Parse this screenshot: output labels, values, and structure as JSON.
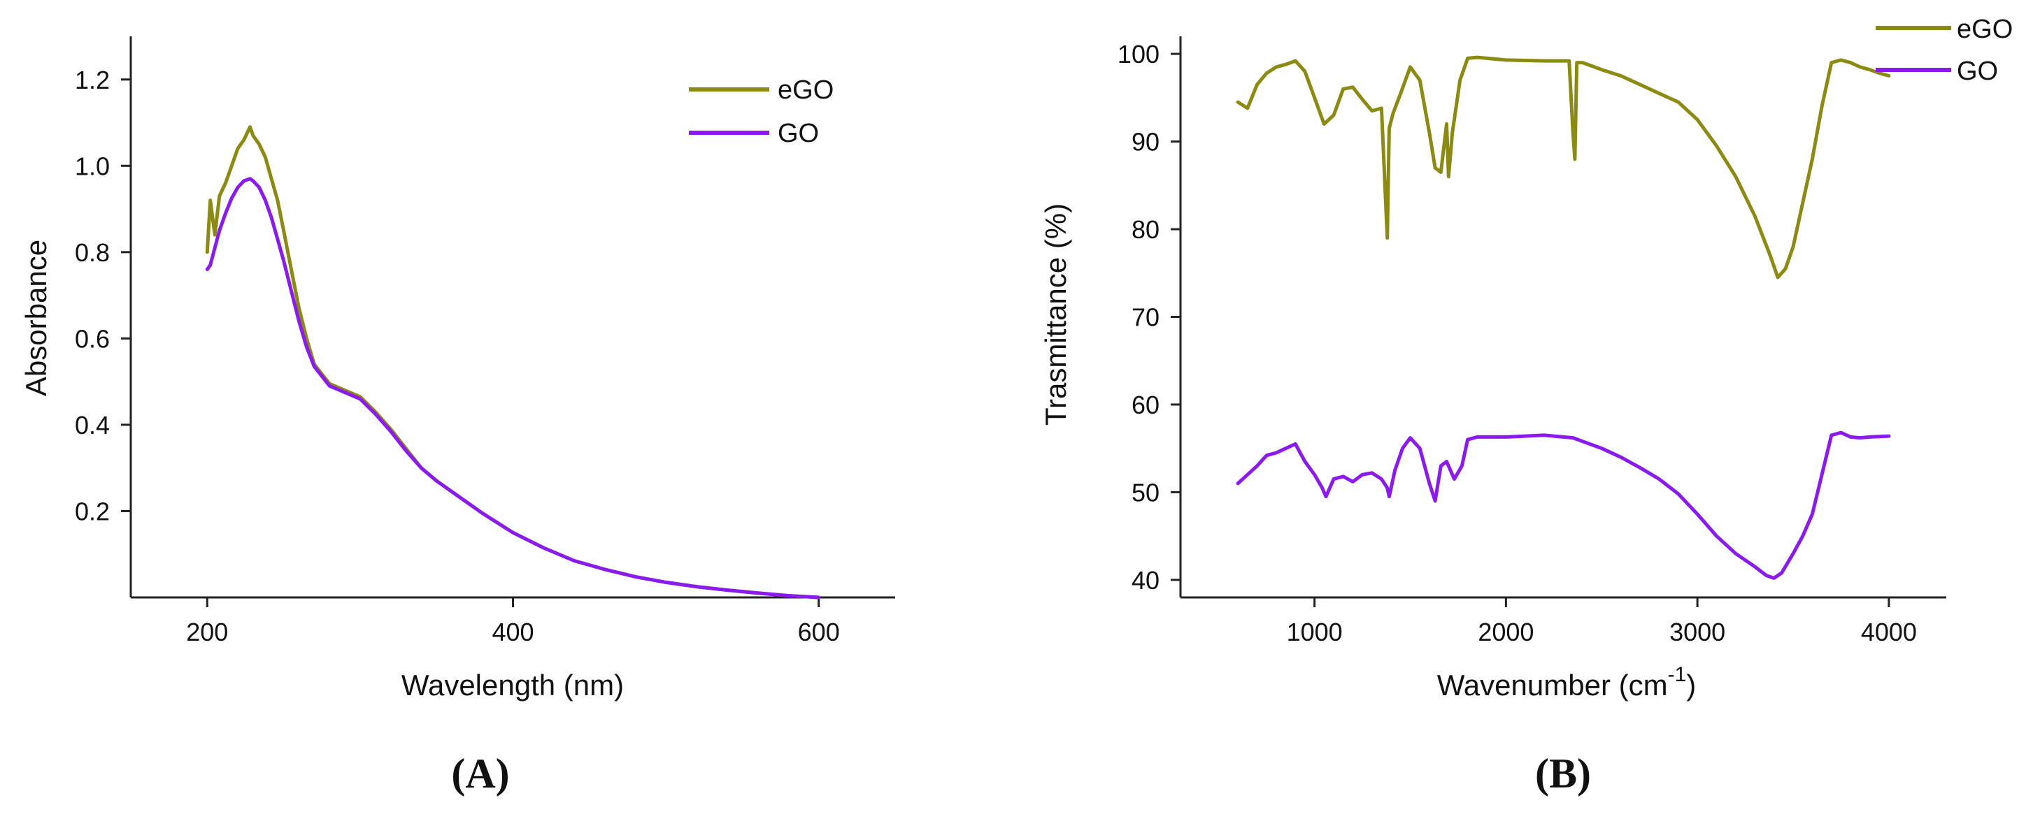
{
  "chart_data": [
    {
      "type": "line",
      "panel_label": "(A)",
      "xlabel": "Wavelength (nm)",
      "ylabel": "Absorbance",
      "xlim": [
        150,
        650
      ],
      "ylim": [
        0,
        1.3
      ],
      "xticks": [
        200,
        400,
        600
      ],
      "yticks": [
        0.2,
        0.4,
        0.6,
        0.8,
        1.0,
        1.2
      ],
      "legend": "top-right",
      "series": [
        {
          "name": "eGO",
          "color": "#8b8b12",
          "x": [
            200,
            202,
            205,
            208,
            212,
            216,
            220,
            224,
            228,
            230,
            234,
            238,
            242,
            246,
            250,
            255,
            260,
            265,
            270,
            280,
            290,
            300,
            310,
            320,
            330,
            340,
            350,
            360,
            370,
            380,
            400,
            420,
            440,
            460,
            480,
            500,
            520,
            540,
            560,
            580,
            600
          ],
          "y": [
            0.8,
            0.92,
            0.84,
            0.93,
            0.96,
            1.0,
            1.04,
            1.06,
            1.09,
            1.07,
            1.05,
            1.02,
            0.97,
            0.92,
            0.85,
            0.76,
            0.67,
            0.6,
            0.54,
            0.495,
            0.48,
            0.465,
            0.43,
            0.39,
            0.345,
            0.3,
            0.27,
            0.245,
            0.22,
            0.195,
            0.15,
            0.115,
            0.085,
            0.065,
            0.048,
            0.035,
            0.025,
            0.017,
            0.01,
            0.004,
            0.0
          ]
        },
        {
          "name": "GO",
          "color": "#8a1aee",
          "x": [
            200,
            202,
            205,
            208,
            212,
            216,
            220,
            224,
            228,
            230,
            234,
            238,
            242,
            246,
            250,
            255,
            260,
            265,
            270,
            280,
            290,
            300,
            310,
            320,
            330,
            340,
            350,
            360,
            370,
            380,
            400,
            420,
            440,
            460,
            480,
            500,
            520,
            540,
            560,
            580,
            600
          ],
          "y": [
            0.76,
            0.77,
            0.81,
            0.85,
            0.89,
            0.925,
            0.95,
            0.965,
            0.97,
            0.965,
            0.95,
            0.92,
            0.88,
            0.83,
            0.78,
            0.71,
            0.64,
            0.58,
            0.535,
            0.49,
            0.475,
            0.46,
            0.425,
            0.385,
            0.34,
            0.3,
            0.27,
            0.245,
            0.22,
            0.195,
            0.15,
            0.115,
            0.085,
            0.065,
            0.048,
            0.035,
            0.025,
            0.017,
            0.01,
            0.004,
            0.0
          ]
        }
      ]
    },
    {
      "type": "line",
      "panel_label": "(B)",
      "xlabel": "Wavenumber (cm",
      "xlabel_sup": "-1",
      "xlabel_close": ")",
      "ylabel": "Trasmittance (%)",
      "xlim": [
        300,
        4300
      ],
      "ylim": [
        38,
        102
      ],
      "xticks": [
        1000,
        2000,
        3000,
        4000
      ],
      "yticks": [
        40,
        50,
        60,
        70,
        80,
        90,
        100
      ],
      "legend": "top-right",
      "series": [
        {
          "name": "eGO",
          "color": "#8b8b12",
          "x": [
            600,
            650,
            700,
            750,
            800,
            850,
            900,
            950,
            1000,
            1050,
            1100,
            1150,
            1200,
            1250,
            1300,
            1350,
            1380,
            1390,
            1410,
            1450,
            1500,
            1550,
            1600,
            1630,
            1660,
            1690,
            1700,
            1720,
            1760,
            1800,
            1850,
            2000,
            2200,
            2330,
            2350,
            2360,
            2370,
            2400,
            2500,
            2600,
            2700,
            2800,
            2900,
            3000,
            3100,
            3200,
            3300,
            3380,
            3420,
            3460,
            3500,
            3550,
            3600,
            3650,
            3700,
            3750,
            3800,
            3850,
            3900,
            3950,
            4000
          ],
          "y": [
            94.5,
            93.8,
            96.5,
            97.8,
            98.5,
            98.8,
            99.2,
            98.0,
            95.0,
            92.0,
            93.0,
            96.0,
            96.2,
            94.8,
            93.5,
            93.8,
            79.0,
            91.5,
            93.2,
            95.5,
            98.5,
            97.0,
            91.0,
            87.0,
            86.5,
            92.0,
            86.0,
            91.0,
            97.0,
            99.5,
            99.6,
            99.3,
            99.2,
            99.2,
            91.0,
            88.0,
            99.0,
            99.0,
            98.2,
            97.5,
            96.5,
            95.5,
            94.5,
            92.5,
            89.5,
            86.0,
            81.5,
            77.0,
            74.5,
            75.5,
            78.0,
            83.0,
            88.0,
            94.0,
            99.0,
            99.3,
            99.0,
            98.5,
            98.2,
            97.8,
            97.5
          ]
        },
        {
          "name": "GO",
          "color": "#8a1aee",
          "x": [
            600,
            650,
            700,
            750,
            800,
            850,
            900,
            950,
            1000,
            1040,
            1060,
            1100,
            1150,
            1200,
            1250,
            1300,
            1350,
            1380,
            1390,
            1420,
            1460,
            1500,
            1550,
            1600,
            1630,
            1660,
            1690,
            1730,
            1770,
            1800,
            1850,
            2000,
            2200,
            2350,
            2500,
            2600,
            2700,
            2800,
            2900,
            3000,
            3100,
            3200,
            3300,
            3360,
            3400,
            3440,
            3500,
            3550,
            3600,
            3650,
            3700,
            3750,
            3800,
            3850,
            3900,
            4000
          ],
          "y": [
            51.0,
            52.0,
            53.0,
            54.2,
            54.5,
            55.0,
            55.5,
            53.5,
            52.0,
            50.5,
            49.5,
            51.5,
            51.8,
            51.2,
            52.0,
            52.2,
            51.5,
            50.5,
            49.5,
            52.5,
            55.0,
            56.2,
            55.0,
            51.0,
            49.0,
            53.0,
            53.5,
            51.5,
            53.0,
            56.0,
            56.3,
            56.3,
            56.5,
            56.2,
            55.0,
            54.0,
            52.8,
            51.5,
            49.8,
            47.5,
            45.0,
            43.0,
            41.5,
            40.5,
            40.2,
            40.8,
            43.0,
            45.0,
            47.5,
            52.0,
            56.5,
            56.8,
            56.3,
            56.2,
            56.3,
            56.4
          ]
        }
      ]
    }
  ]
}
